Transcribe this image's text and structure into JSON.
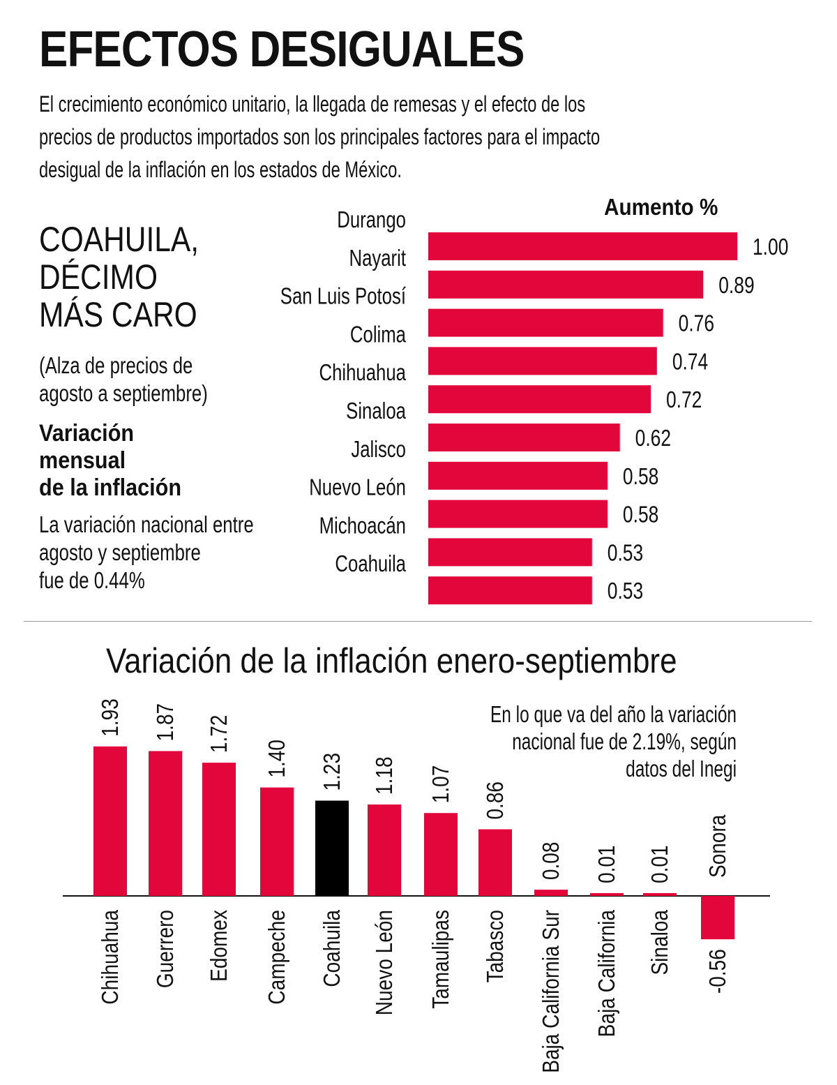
{
  "title": "EFECTOS DESIGUALES",
  "intro": [
    "El crecimiento económico unitario, la llegada de remesas y el efecto de los",
    "precios de productos importados son los principales factores para el impacto",
    "desigual de la inflación en los estados de México."
  ],
  "side": {
    "headline": [
      "COAHUILA,",
      "DÉCIMO",
      "MÁS CARO"
    ],
    "subtitle": [
      "(Alza de precios de",
      "agosto a septiembre)"
    ],
    "variation_title": [
      "Variación",
      "mensual",
      "de la inflación"
    ],
    "national_note": [
      "La variación nacional entre",
      "agosto y septiembre",
      "fue de 0.44%"
    ]
  },
  "bottom": {
    "title": "Variación de la inflación enero-septiembre",
    "note": [
      "En lo que va del año la variación",
      "nacional fue de 2.19%, según",
      "datos del Inegi"
    ]
  },
  "colors": {
    "bar": "#e2063a",
    "highlight": "#000000",
    "text": "#111111"
  },
  "chart_data": [
    {
      "type": "bar",
      "orientation": "horizontal",
      "title": "Aumento %",
      "categories": [
        "Durango",
        "Nayarit",
        "San Luis Potosí",
        "Colima",
        "Chihuahua",
        "Sinaloa",
        "Jalisco",
        "Nuevo León",
        "Michoacán",
        "Coahuila"
      ],
      "values": [
        1.0,
        0.89,
        0.76,
        0.74,
        0.72,
        0.62,
        0.58,
        0.58,
        0.53,
        0.53
      ],
      "labels": [
        "1.00",
        "0.89",
        "0.76",
        "0.74",
        "0.72",
        "0.62",
        "0.58",
        "0.58",
        "0.53",
        "0.53"
      ],
      "xlim": [
        0,
        1.0
      ],
      "grid": false
    },
    {
      "type": "bar",
      "orientation": "vertical",
      "categories": [
        "Chihuahua",
        "Guerrero",
        "Edomex",
        "Campeche",
        "Coahuila",
        "Nuevo León",
        "Tamaulipas",
        "Tabasco",
        "Baja California Sur",
        "Baja California",
        "Sinaloa",
        "Sonora"
      ],
      "values": [
        1.93,
        1.87,
        1.72,
        1.4,
        1.23,
        1.18,
        1.07,
        0.86,
        0.08,
        0.01,
        0.01,
        -0.56
      ],
      "labels": [
        "1.93",
        "1.87",
        "1.72",
        "1.40",
        "1.23",
        "1.18",
        "1.07",
        "0.86",
        "0.08",
        "0.01",
        "0.01",
        "-0.56"
      ],
      "highlight": "Coahuila",
      "ylim": [
        -0.56,
        1.93
      ],
      "grid": false
    }
  ]
}
